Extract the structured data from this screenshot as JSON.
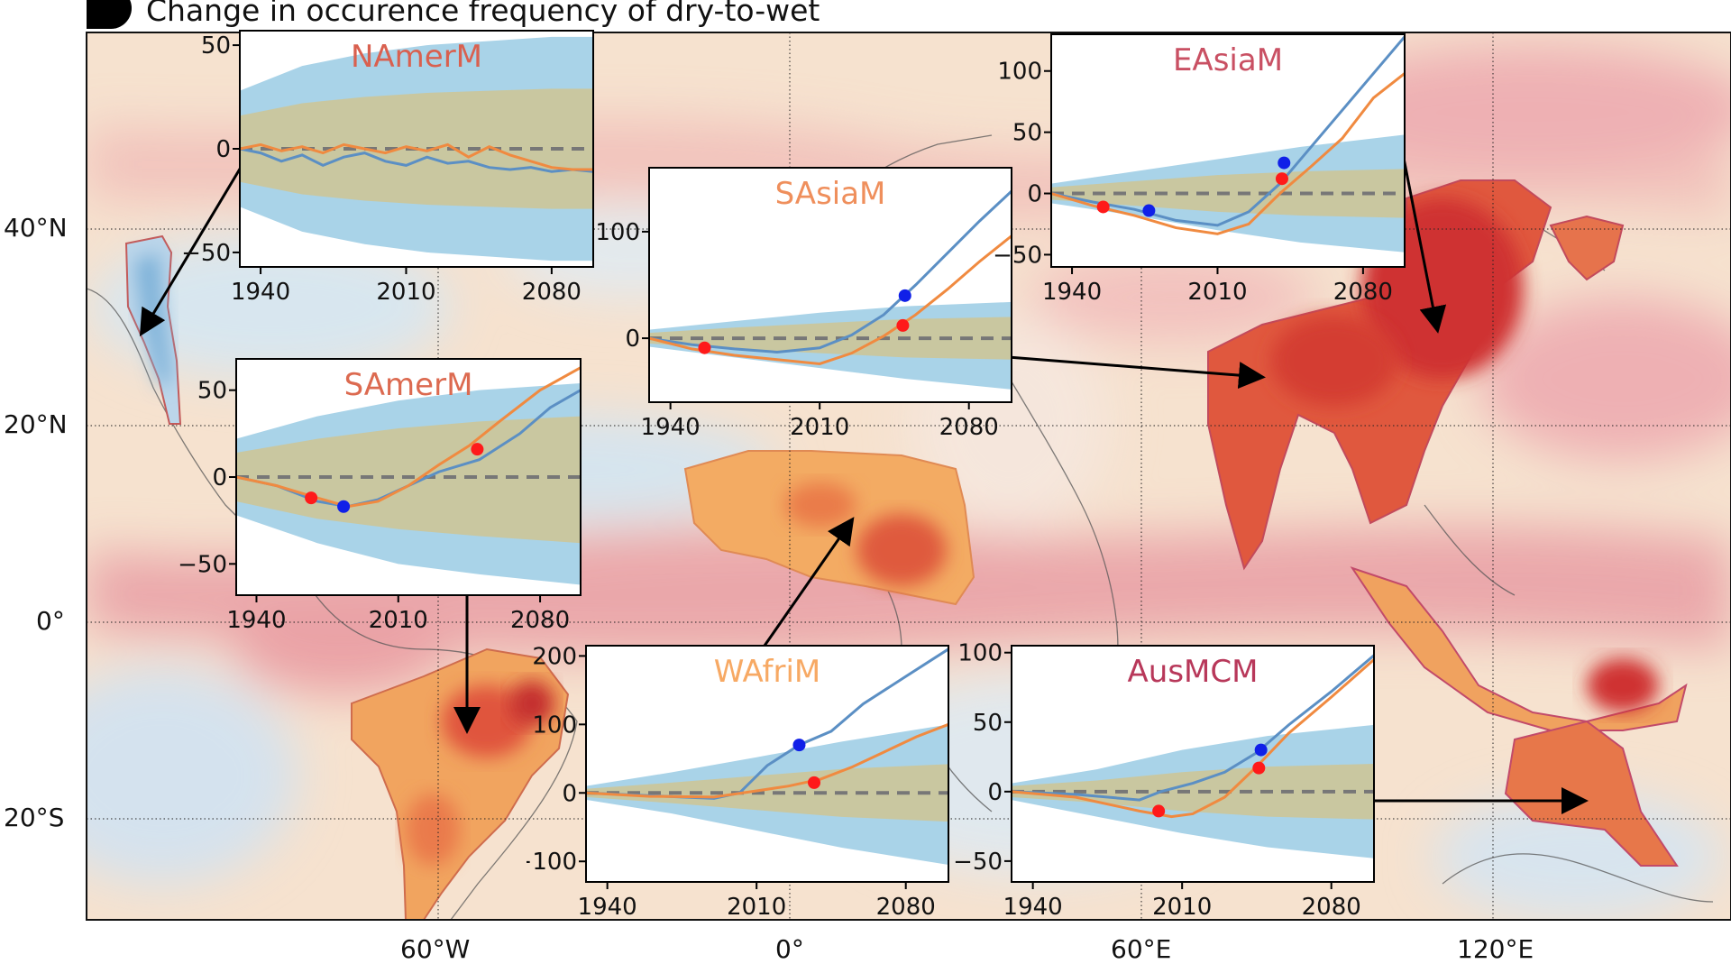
{
  "title": "Change in occurence frequency of dry-to-wet",
  "colors": {
    "hist": "#1f77b4",
    "ssp": "#ff7f0e",
    "line_hist": "#5b8fc4",
    "line_ssp": "#f08a40",
    "band_blue": "#a9d3e8",
    "band_olive": "#c9c7a0",
    "dot_red": "#ff1a1a",
    "dot_blue": "#1020e8",
    "dash": "#777777"
  },
  "map": {
    "lat_ticks": [
      "40°N",
      "20°N",
      "0°",
      "20°S"
    ],
    "lon_ticks": [
      "60°W",
      "0°",
      "60°E",
      "120°E"
    ]
  },
  "chart_data": [
    {
      "type": "line",
      "title": "NAmerM",
      "title_color": "#d9604f",
      "xlim": [
        1930,
        2100
      ],
      "ylim": [
        -57,
        57
      ],
      "xticks": [
        1940,
        2010,
        2080
      ],
      "yticks": [
        50,
        0,
        -50
      ],
      "band_outer": {
        "x": [
          1930,
          1960,
          1990,
          2020,
          2050,
          2080,
          2100
        ],
        "lo": [
          -28,
          -40,
          -46,
          -50,
          -52,
          -54,
          -54
        ],
        "hi": [
          28,
          40,
          46,
          50,
          52,
          54,
          54
        ]
      },
      "band_inner": {
        "x": [
          1930,
          1960,
          1990,
          2020,
          2050,
          2080,
          2100
        ],
        "lo": [
          -16,
          -22,
          -25,
          -27,
          -28,
          -29,
          -29
        ],
        "hi": [
          16,
          22,
          25,
          27,
          28,
          29,
          29
        ]
      },
      "series": [
        {
          "x": [
            1930,
            1940,
            1950,
            1960,
            1970,
            1980,
            1990,
            2000,
            2010,
            2020,
            2030,
            2040,
            2050,
            2060,
            2070,
            2080,
            2090,
            2100
          ],
          "values": [
            0,
            -2,
            -6,
            -3,
            -8,
            -4,
            -2,
            -6,
            -8,
            -4,
            -7,
            -6,
            -9,
            -10,
            -9,
            -11,
            -10,
            -11
          ]
        },
        {
          "x": [
            1930,
            1940,
            1950,
            1960,
            1970,
            1980,
            1990,
            2000,
            2010,
            2020,
            2030,
            2040,
            2050,
            2060,
            2070,
            2080,
            2090,
            2100
          ],
          "values": [
            0,
            2,
            -1,
            1,
            -2,
            2,
            0,
            -2,
            1,
            -1,
            2,
            -4,
            1,
            -3,
            -6,
            -9,
            -10,
            -10
          ]
        }
      ],
      "markers": []
    },
    {
      "type": "line",
      "title": "SAmerM",
      "title_color": "#dc6a50",
      "xlim": [
        1930,
        2100
      ],
      "ylim": [
        -68,
        68
      ],
      "xticks": [
        1940,
        2010,
        2080
      ],
      "yticks": [
        50,
        0,
        -50
      ],
      "band_outer": {
        "x": [
          1930,
          1970,
          2010,
          2050,
          2100
        ],
        "lo": [
          -22,
          -38,
          -50,
          -56,
          -62
        ],
        "hi": [
          22,
          35,
          44,
          50,
          54
        ]
      },
      "band_inner": {
        "x": [
          1930,
          1970,
          2010,
          2050,
          2100
        ],
        "lo": [
          -14,
          -24,
          -30,
          -34,
          -38
        ],
        "hi": [
          14,
          22,
          28,
          32,
          35
        ]
      },
      "series": [
        {
          "x": [
            1930,
            1950,
            1970,
            1985,
            2000,
            2015,
            2030,
            2050,
            2070,
            2085,
            2100
          ],
          "values": [
            0,
            -5,
            -14,
            -17,
            -13,
            -5,
            3,
            10,
            25,
            40,
            50
          ]
        },
        {
          "x": [
            1930,
            1950,
            1970,
            1985,
            2000,
            2015,
            2030,
            2045,
            2060,
            2080,
            2100
          ],
          "values": [
            0,
            -5,
            -12,
            -17,
            -14,
            -5,
            7,
            18,
            32,
            50,
            63
          ]
        }
      ],
      "markers": [
        {
          "x": 1967,
          "y": -12,
          "color": "#ff1a1a"
        },
        {
          "x": 1983,
          "y": -17,
          "color": "#1020e8"
        },
        {
          "x": 2049,
          "y": 16,
          "color": "#ff1a1a"
        }
      ]
    },
    {
      "type": "line",
      "title": "SAsiaM",
      "title_color": "#ef8f5c",
      "xlim": [
        1930,
        2100
      ],
      "ylim": [
        -60,
        160
      ],
      "xticks": [
        1940,
        2010,
        2080
      ],
      "yticks": [
        100,
        0
      ],
      "band_outer": {
        "x": [
          1930,
          1970,
          2010,
          2050,
          2100
        ],
        "lo": [
          -8,
          -18,
          -28,
          -38,
          -48
        ],
        "hi": [
          8,
          16,
          24,
          30,
          34
        ]
      },
      "band_inner": {
        "x": [
          1930,
          1970,
          2010,
          2050,
          2100
        ],
        "lo": [
          -5,
          -10,
          -14,
          -18,
          -20
        ],
        "hi": [
          5,
          10,
          14,
          18,
          20
        ]
      },
      "series": [
        {
          "x": [
            1930,
            1950,
            1970,
            1990,
            2010,
            2025,
            2040,
            2055,
            2070,
            2085,
            2100
          ],
          "values": [
            0,
            -6,
            -10,
            -13,
            -9,
            3,
            22,
            50,
            80,
            110,
            138
          ]
        },
        {
          "x": [
            1930,
            1950,
            1970,
            1990,
            2010,
            2025,
            2040,
            2055,
            2070,
            2085,
            2100
          ],
          "values": [
            0,
            -10,
            -16,
            -20,
            -24,
            -14,
            2,
            22,
            46,
            72,
            96
          ]
        }
      ],
      "markers": [
        {
          "x": 1956,
          "y": -9,
          "color": "#ff1a1a"
        },
        {
          "x": 2050,
          "y": 40,
          "color": "#1020e8"
        },
        {
          "x": 2049,
          "y": 12,
          "color": "#ff1a1a"
        }
      ]
    },
    {
      "type": "line",
      "title": "EAsiaM",
      "title_color": "#c95063",
      "xlim": [
        1930,
        2100
      ],
      "ylim": [
        -60,
        130
      ],
      "xticks": [
        1940,
        2010,
        2080
      ],
      "yticks": [
        100,
        50,
        0,
        -50
      ],
      "band_outer": {
        "x": [
          1930,
          1970,
          2010,
          2050,
          2100
        ],
        "lo": [
          -8,
          -18,
          -30,
          -40,
          -48
        ],
        "hi": [
          8,
          18,
          28,
          38,
          48
        ]
      },
      "band_inner": {
        "x": [
          1930,
          1970,
          2010,
          2050,
          2100
        ],
        "lo": [
          -5,
          -10,
          -15,
          -18,
          -20
        ],
        "hi": [
          5,
          10,
          15,
          18,
          20
        ]
      },
      "series": [
        {
          "x": [
            1930,
            1950,
            1970,
            1990,
            2010,
            2025,
            2040,
            2055,
            2070,
            2085,
            2100
          ],
          "values": [
            0,
            -7,
            -13,
            -22,
            -26,
            -15,
            8,
            38,
            68,
            98,
            128
          ]
        },
        {
          "x": [
            1930,
            1950,
            1970,
            1990,
            2010,
            2025,
            2040,
            2055,
            2070,
            2085,
            2100
          ],
          "values": [
            0,
            -10,
            -18,
            -28,
            -33,
            -25,
            0,
            22,
            45,
            78,
            98
          ]
        }
      ],
      "markers": [
        {
          "x": 1955,
          "y": -11,
          "color": "#ff1a1a"
        },
        {
          "x": 1977,
          "y": -14,
          "color": "#1020e8"
        },
        {
          "x": 2042,
          "y": 25,
          "color": "#1020e8"
        },
        {
          "x": 2041,
          "y": 12,
          "color": "#ff1a1a"
        }
      ]
    },
    {
      "type": "line",
      "title": "WAfriM",
      "title_color": "#f7a964",
      "xlim": [
        1930,
        2100
      ],
      "ylim": [
        -130,
        215
      ],
      "xticks": [
        1940,
        2010,
        2080
      ],
      "yticks": [
        200,
        100,
        0,
        -100
      ],
      "band_outer": {
        "x": [
          1930,
          1970,
          2010,
          2050,
          2100
        ],
        "lo": [
          -10,
          -30,
          -55,
          -80,
          -105
        ],
        "hi": [
          10,
          30,
          52,
          75,
          100
        ]
      },
      "band_inner": {
        "x": [
          1930,
          1970,
          2010,
          2050,
          2100
        ],
        "lo": [
          -6,
          -15,
          -25,
          -35,
          -42
        ],
        "hi": [
          6,
          15,
          25,
          35,
          42
        ]
      },
      "series": [
        {
          "x": [
            1930,
            1960,
            1990,
            2002,
            2015,
            2030,
            2045,
            2060,
            2080,
            2100
          ],
          "values": [
            0,
            -4,
            -8,
            0,
            40,
            70,
            90,
            130,
            170,
            210
          ]
        },
        {
          "x": [
            1930,
            1960,
            1990,
            2010,
            2025,
            2040,
            2055,
            2070,
            2085,
            2100
          ],
          "values": [
            0,
            -5,
            -6,
            3,
            10,
            20,
            38,
            60,
            82,
            100
          ]
        }
      ],
      "markers": [
        {
          "x": 2030,
          "y": 70,
          "color": "#1020e8"
        },
        {
          "x": 2037,
          "y": 15,
          "color": "#ff1a1a"
        }
      ]
    },
    {
      "type": "line",
      "title": "AusMCM",
      "title_color": "#b8385a",
      "xlim": [
        1930,
        2100
      ],
      "ylim": [
        -65,
        105
      ],
      "xticks": [
        1940,
        2010,
        2080
      ],
      "yticks": [
        100,
        50,
        0,
        -50
      ],
      "band_outer": {
        "x": [
          1930,
          1970,
          2010,
          2050,
          2100
        ],
        "lo": [
          -6,
          -18,
          -30,
          -40,
          -48
        ],
        "hi": [
          6,
          16,
          30,
          40,
          48
        ]
      },
      "band_inner": {
        "x": [
          1930,
          1970,
          2010,
          2050,
          2100
        ],
        "lo": [
          -4,
          -8,
          -14,
          -18,
          -20
        ],
        "hi": [
          4,
          8,
          14,
          18,
          20
        ]
      },
      "series": [
        {
          "x": [
            1930,
            1960,
            1990,
            2000,
            2015,
            2030,
            2045,
            2060,
            2080,
            2100
          ],
          "values": [
            0,
            -2,
            -6,
            0,
            6,
            14,
            28,
            48,
            72,
            98
          ]
        },
        {
          "x": [
            1930,
            1960,
            1990,
            2005,
            2015,
            2030,
            2045,
            2060,
            2080,
            2100
          ],
          "values": [
            0,
            -4,
            -14,
            -18,
            -16,
            -4,
            18,
            42,
            68,
            95
          ]
        }
      ],
      "markers": [
        {
          "x": 1999,
          "y": -14,
          "color": "#ff1a1a"
        },
        {
          "x": 2047,
          "y": 30,
          "color": "#1020e8"
        },
        {
          "x": 2046,
          "y": 17,
          "color": "#ff1a1a"
        }
      ]
    }
  ]
}
